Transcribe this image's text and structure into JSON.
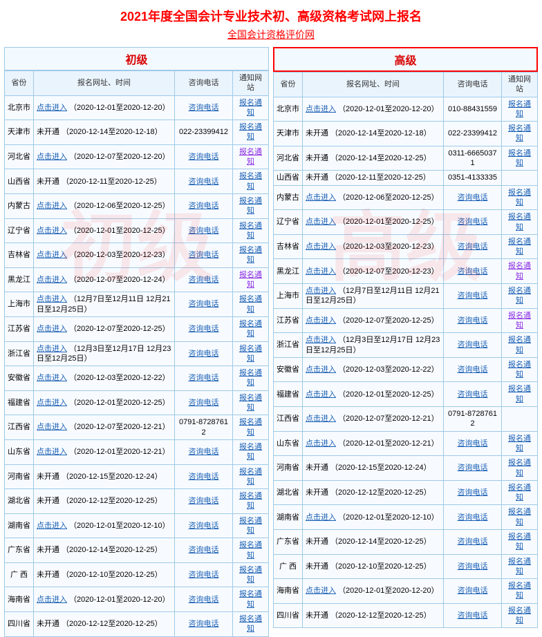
{
  "title": "2021年度全国会计专业技术初、高级资格考试网上报名",
  "subtitle": "全国会计资格评价网",
  "link_enter": "点击进入",
  "link_not_open": "未开通",
  "link_phone": "咨询电话",
  "link_notice": "报名通知",
  "panels": [
    {
      "heading": "初级",
      "watermark": "初级",
      "highlight": false
    },
    {
      "heading": "高级",
      "watermark": "高级",
      "highlight": true
    }
  ],
  "headers": {
    "province": "省份",
    "info": "报名网址、时间",
    "phone": "咨询电话",
    "notice": "通知网站"
  },
  "rows_left": [
    {
      "prov": "北京市",
      "enter": true,
      "date": "（2020-12-01至2020-12-20）",
      "phone_link": true,
      "phone_text": "",
      "notice": true,
      "notice_purple": false
    },
    {
      "prov": "天津市",
      "enter": false,
      "date": "（2020-12-14至2020-12-18）",
      "phone_link": false,
      "phone_text": "022-23399412",
      "notice": true,
      "notice_purple": false
    },
    {
      "prov": "河北省",
      "enter": true,
      "date": "（2020-12-07至2020-12-20）",
      "phone_link": true,
      "phone_text": "",
      "notice": true,
      "notice_purple": true
    },
    {
      "prov": "山西省",
      "enter": false,
      "date": "（2020-12-11至2020-12-25）",
      "phone_link": true,
      "phone_text": "",
      "notice": true,
      "notice_purple": false
    },
    {
      "prov": "内蒙古",
      "enter": true,
      "date": "（2020-12-06至2020-12-25）",
      "phone_link": true,
      "phone_text": "",
      "notice": true,
      "notice_purple": false
    },
    {
      "prov": "辽宁省",
      "enter": true,
      "date": "（2020-12-01至2020-12-25）",
      "phone_link": true,
      "phone_text": "",
      "notice": true,
      "notice_purple": false
    },
    {
      "prov": "吉林省",
      "enter": true,
      "date": "（2020-12-03至2020-12-23）",
      "phone_link": true,
      "phone_text": "",
      "notice": true,
      "notice_purple": false
    },
    {
      "prov": "黑龙江",
      "enter": true,
      "date": "（2020-12-07至2020-12-24）",
      "phone_link": true,
      "phone_text": "",
      "notice": true,
      "notice_purple": true
    },
    {
      "prov": "上海市",
      "enter": true,
      "date": "（12月7日至12月11日 12月21日至12月25日）",
      "phone_link": true,
      "phone_text": "",
      "notice": true,
      "notice_purple": false
    },
    {
      "prov": "江苏省",
      "enter": true,
      "date": "（2020-12-07至2020-12-25）",
      "phone_link": true,
      "phone_text": "",
      "notice": true,
      "notice_purple": false
    },
    {
      "prov": "浙江省",
      "enter": true,
      "date": "（12月3日至12月17日 12月23日至12月25日）",
      "phone_link": true,
      "phone_text": "",
      "notice": true,
      "notice_purple": false
    },
    {
      "prov": "安徽省",
      "enter": true,
      "date": "（2020-12-03至2020-12-22）",
      "phone_link": true,
      "phone_text": "",
      "notice": true,
      "notice_purple": false
    },
    {
      "prov": "福建省",
      "enter": true,
      "date": "（2020-12-01至2020-12-25）",
      "phone_link": true,
      "phone_text": "",
      "notice": true,
      "notice_purple": false
    },
    {
      "prov": "江西省",
      "enter": true,
      "date": "（2020-12-07至2020-12-21）",
      "phone_link": false,
      "phone_text": "0791-87287612",
      "notice": true,
      "notice_purple": false
    },
    {
      "prov": "山东省",
      "enter": true,
      "date": "（2020-12-01至2020-12-21）",
      "phone_link": true,
      "phone_text": "",
      "notice": true,
      "notice_purple": false
    },
    {
      "prov": "河南省",
      "enter": false,
      "date": "（2020-12-15至2020-12-24）",
      "phone_link": true,
      "phone_text": "",
      "notice": true,
      "notice_purple": false
    },
    {
      "prov": "湖北省",
      "enter": false,
      "date": "（2020-12-12至2020-12-25）",
      "phone_link": true,
      "phone_text": "",
      "notice": true,
      "notice_purple": false
    },
    {
      "prov": "湖南省",
      "enter": true,
      "date": "（2020-12-01至2020-12-10）",
      "phone_link": true,
      "phone_text": "",
      "notice": true,
      "notice_purple": false
    },
    {
      "prov": "广东省",
      "enter": false,
      "date": "（2020-12-14至2020-12-25）",
      "phone_link": true,
      "phone_text": "",
      "notice": true,
      "notice_purple": false
    },
    {
      "prov": "广 西",
      "enter": false,
      "date": "（2020-12-10至2020-12-25）",
      "phone_link": true,
      "phone_text": "",
      "notice": true,
      "notice_purple": false
    },
    {
      "prov": "海南省",
      "enter": true,
      "date": "（2020-12-01至2020-12-20）",
      "phone_link": true,
      "phone_text": "",
      "notice": true,
      "notice_purple": false
    },
    {
      "prov": "四川省",
      "enter": false,
      "date": "（2020-12-12至2020-12-25）",
      "phone_link": true,
      "phone_text": "",
      "notice": true,
      "notice_purple": false
    }
  ],
  "rows_right": [
    {
      "prov": "北京市",
      "enter": true,
      "date": "（2020-12-01至2020-12-20）",
      "phone_link": false,
      "phone_text": "010-88431559",
      "notice": true,
      "notice_purple": false
    },
    {
      "prov": "天津市",
      "enter": false,
      "date": "（2020-12-14至2020-12-18）",
      "phone_link": false,
      "phone_text": "022-23399412",
      "notice": true,
      "notice_purple": false
    },
    {
      "prov": "河北省",
      "enter": false,
      "date": "（2020-12-14至2020-12-25）",
      "phone_link": false,
      "phone_text": "0311-66650371",
      "notice": true,
      "notice_purple": false
    },
    {
      "prov": "山西省",
      "enter": false,
      "date": "（2020-12-11至2020-12-25）",
      "phone_link": false,
      "phone_text": "0351-4133335",
      "notice": false,
      "notice_purple": false
    },
    {
      "prov": "内蒙古",
      "enter": true,
      "date": "（2020-12-06至2020-12-25）",
      "phone_link": true,
      "phone_text": "",
      "notice": true,
      "notice_purple": false
    },
    {
      "prov": "辽宁省",
      "enter": true,
      "date": "（2020-12-01至2020-12-25）",
      "phone_link": true,
      "phone_text": "",
      "notice": true,
      "notice_purple": false
    },
    {
      "prov": "吉林省",
      "enter": true,
      "date": "（2020-12-03至2020-12-23）",
      "phone_link": true,
      "phone_text": "",
      "notice": true,
      "notice_purple": false
    },
    {
      "prov": "黑龙江",
      "enter": true,
      "date": "（2020-12-07至2020-12-23）",
      "phone_link": true,
      "phone_text": "",
      "notice": true,
      "notice_purple": true
    },
    {
      "prov": "上海市",
      "enter": true,
      "date": "（12月7日至12月11日 12月21日至12月25日）",
      "phone_link": true,
      "phone_text": "",
      "notice": true,
      "notice_purple": false
    },
    {
      "prov": "江苏省",
      "enter": true,
      "date": "（2020-12-07至2020-12-25）",
      "phone_link": true,
      "phone_text": "",
      "notice": true,
      "notice_purple": true
    },
    {
      "prov": "浙江省",
      "enter": true,
      "date": "（12月3日至12月17日 12月23日至12月25日）",
      "phone_link": true,
      "phone_text": "",
      "notice": true,
      "notice_purple": false
    },
    {
      "prov": "安徽省",
      "enter": true,
      "date": "（2020-12-03至2020-12-22）",
      "phone_link": true,
      "phone_text": "",
      "notice": true,
      "notice_purple": false
    },
    {
      "prov": "福建省",
      "enter": true,
      "date": "（2020-12-01至2020-12-25）",
      "phone_link": true,
      "phone_text": "",
      "notice": true,
      "notice_purple": false
    },
    {
      "prov": "江西省",
      "enter": true,
      "date": "（2020-12-07至2020-12-21）",
      "phone_link": false,
      "phone_text": "0791-87287612",
      "notice": false,
      "notice_purple": false
    },
    {
      "prov": "山东省",
      "enter": true,
      "date": "（2020-12-01至2020-12-21）",
      "phone_link": true,
      "phone_text": "",
      "notice": true,
      "notice_purple": false
    },
    {
      "prov": "河南省",
      "enter": false,
      "date": "（2020-12-15至2020-12-24）",
      "phone_link": true,
      "phone_text": "",
      "notice": true,
      "notice_purple": false
    },
    {
      "prov": "湖北省",
      "enter": false,
      "date": "（2020-12-12至2020-12-25）",
      "phone_link": true,
      "phone_text": "",
      "notice": true,
      "notice_purple": false
    },
    {
      "prov": "湖南省",
      "enter": true,
      "date": "（2020-12-01至2020-12-10）",
      "phone_link": true,
      "phone_text": "",
      "notice": true,
      "notice_purple": false
    },
    {
      "prov": "广东省",
      "enter": false,
      "date": "（2020-12-14至2020-12-25）",
      "phone_link": true,
      "phone_text": "",
      "notice": true,
      "notice_purple": false
    },
    {
      "prov": "广 西",
      "enter": false,
      "date": "（2020-12-10至2020-12-25）",
      "phone_link": true,
      "phone_text": "",
      "notice": true,
      "notice_purple": false
    },
    {
      "prov": "海南省",
      "enter": true,
      "date": "（2020-12-01至2020-12-20）",
      "phone_link": true,
      "phone_text": "",
      "notice": true,
      "notice_purple": false
    },
    {
      "prov": "四川省",
      "enter": false,
      "date": "（2020-12-12至2020-12-25）",
      "phone_link": true,
      "phone_text": "",
      "notice": true,
      "notice_purple": false
    }
  ]
}
